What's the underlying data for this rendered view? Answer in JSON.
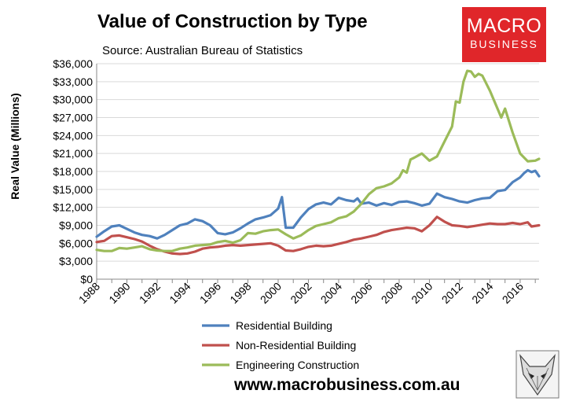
{
  "header": {
    "title": "Value of Construction by Type",
    "subtitle": "Source: Australian Bureau of Statistics"
  },
  "logo": {
    "line1": "MACRO",
    "line2": "BUSINESS"
  },
  "footer": {
    "url": "www.macrobusiness.com.au"
  },
  "chart_data": {
    "type": "line",
    "ylabel": "Real Value (Millions)",
    "xlabel": "",
    "xlim": [
      1988,
      2017.25
    ],
    "ylim": [
      0,
      36000
    ],
    "yticks": [
      0,
      3000,
      6000,
      9000,
      12000,
      15000,
      18000,
      21000,
      24000,
      27000,
      30000,
      33000,
      36000
    ],
    "ytick_labels": [
      "$0",
      "$3,000",
      "$6,000",
      "$9,000",
      "$12,000",
      "$15,000",
      "$18,000",
      "$21,000",
      "$24,000",
      "$27,000",
      "$30,000",
      "$33,000",
      "$36,000"
    ],
    "xticks": [
      1988,
      1990,
      1992,
      1994,
      1996,
      1998,
      2000,
      2002,
      2004,
      2006,
      2008,
      2010,
      2012,
      2014,
      2016
    ],
    "grid": true,
    "legend_position": "bottom",
    "series": [
      {
        "name": "Residential Building",
        "color": "#4f81bd",
        "points": [
          [
            1988,
            7100
          ],
          [
            1988.5,
            8000
          ],
          [
            1989,
            8800
          ],
          [
            1989.5,
            9000
          ],
          [
            1990,
            8400
          ],
          [
            1990.5,
            7800
          ],
          [
            1991,
            7400
          ],
          [
            1991.5,
            7200
          ],
          [
            1992,
            6800
          ],
          [
            1992.5,
            7400
          ],
          [
            1993,
            8200
          ],
          [
            1993.5,
            9000
          ],
          [
            1994,
            9300
          ],
          [
            1994.5,
            10000
          ],
          [
            1995,
            9700
          ],
          [
            1995.5,
            9000
          ],
          [
            1996,
            7700
          ],
          [
            1996.5,
            7500
          ],
          [
            1997,
            7800
          ],
          [
            1997.5,
            8500
          ],
          [
            1998,
            9300
          ],
          [
            1998.5,
            10000
          ],
          [
            1999,
            10300
          ],
          [
            1999.5,
            10700
          ],
          [
            2000,
            11800
          ],
          [
            2000.25,
            13700
          ],
          [
            2000.5,
            8600
          ],
          [
            2001,
            8600
          ],
          [
            2001.5,
            10300
          ],
          [
            2002,
            11700
          ],
          [
            2002.5,
            12500
          ],
          [
            2003,
            12800
          ],
          [
            2003.5,
            12500
          ],
          [
            2004,
            13600
          ],
          [
            2004.5,
            13200
          ],
          [
            2005,
            13000
          ],
          [
            2005.25,
            13500
          ],
          [
            2005.5,
            12600
          ],
          [
            2006,
            12800
          ],
          [
            2006.5,
            12300
          ],
          [
            2007,
            12700
          ],
          [
            2007.5,
            12400
          ],
          [
            2008,
            12900
          ],
          [
            2008.5,
            13000
          ],
          [
            2009,
            12700
          ],
          [
            2009.5,
            12300
          ],
          [
            2010,
            12600
          ],
          [
            2010.5,
            14300
          ],
          [
            2011,
            13700
          ],
          [
            2011.5,
            13400
          ],
          [
            2012,
            13000
          ],
          [
            2012.5,
            12800
          ],
          [
            2013,
            13200
          ],
          [
            2013.5,
            13500
          ],
          [
            2014,
            13600
          ],
          [
            2014.5,
            14700
          ],
          [
            2015,
            14900
          ],
          [
            2015.5,
            16200
          ],
          [
            2016,
            17000
          ],
          [
            2016.25,
            17700
          ],
          [
            2016.5,
            18200
          ],
          [
            2016.75,
            17900
          ],
          [
            2017,
            18100
          ],
          [
            2017.25,
            17200
          ]
        ]
      },
      {
        "name": "Non-Residential Building",
        "color": "#c0504d",
        "points": [
          [
            1988,
            6200
          ],
          [
            1988.5,
            6400
          ],
          [
            1989,
            7200
          ],
          [
            1989.5,
            7300
          ],
          [
            1990,
            7000
          ],
          [
            1990.5,
            6700
          ],
          [
            1991,
            6300
          ],
          [
            1991.5,
            5600
          ],
          [
            1992,
            5000
          ],
          [
            1992.5,
            4600
          ],
          [
            1993,
            4300
          ],
          [
            1993.5,
            4200
          ],
          [
            1994,
            4300
          ],
          [
            1994.5,
            4600
          ],
          [
            1995,
            5100
          ],
          [
            1995.5,
            5300
          ],
          [
            1996,
            5400
          ],
          [
            1996.5,
            5600
          ],
          [
            1997,
            5700
          ],
          [
            1997.5,
            5600
          ],
          [
            1998,
            5700
          ],
          [
            1998.5,
            5800
          ],
          [
            1999,
            5900
          ],
          [
            1999.5,
            6000
          ],
          [
            2000,
            5600
          ],
          [
            2000.5,
            4800
          ],
          [
            2001,
            4700
          ],
          [
            2001.5,
            5000
          ],
          [
            2002,
            5400
          ],
          [
            2002.5,
            5600
          ],
          [
            2003,
            5500
          ],
          [
            2003.5,
            5600
          ],
          [
            2004,
            5900
          ],
          [
            2004.5,
            6200
          ],
          [
            2005,
            6600
          ],
          [
            2005.5,
            6800
          ],
          [
            2006,
            7100
          ],
          [
            2006.5,
            7400
          ],
          [
            2007,
            7900
          ],
          [
            2007.5,
            8200
          ],
          [
            2008,
            8400
          ],
          [
            2008.5,
            8600
          ],
          [
            2009,
            8500
          ],
          [
            2009.5,
            8000
          ],
          [
            2010,
            9000
          ],
          [
            2010.5,
            10400
          ],
          [
            2011,
            9600
          ],
          [
            2011.5,
            9000
          ],
          [
            2012,
            8900
          ],
          [
            2012.5,
            8700
          ],
          [
            2013,
            8900
          ],
          [
            2013.5,
            9100
          ],
          [
            2014,
            9300
          ],
          [
            2014.5,
            9200
          ],
          [
            2015,
            9200
          ],
          [
            2015.5,
            9400
          ],
          [
            2016,
            9200
          ],
          [
            2016.5,
            9500
          ],
          [
            2016.75,
            8800
          ],
          [
            2017.25,
            9000
          ]
        ]
      },
      {
        "name": "Engineering Construction",
        "color": "#9bbb59",
        "points": [
          [
            1988,
            4900
          ],
          [
            1988.5,
            4700
          ],
          [
            1989,
            4700
          ],
          [
            1989.5,
            5200
          ],
          [
            1990,
            5100
          ],
          [
            1990.5,
            5300
          ],
          [
            1991,
            5500
          ],
          [
            1991.5,
            5000
          ],
          [
            1992,
            4800
          ],
          [
            1992.5,
            4700
          ],
          [
            1993,
            4700
          ],
          [
            1993.5,
            5100
          ],
          [
            1994,
            5300
          ],
          [
            1994.5,
            5600
          ],
          [
            1995,
            5700
          ],
          [
            1995.5,
            5800
          ],
          [
            1996,
            6200
          ],
          [
            1996.5,
            6400
          ],
          [
            1997,
            6100
          ],
          [
            1997.5,
            6500
          ],
          [
            1998,
            7700
          ],
          [
            1998.5,
            7600
          ],
          [
            1999,
            8000
          ],
          [
            1999.5,
            8200
          ],
          [
            2000,
            8300
          ],
          [
            2000.5,
            7500
          ],
          [
            2001,
            6800
          ],
          [
            2001.5,
            7300
          ],
          [
            2002,
            8200
          ],
          [
            2002.5,
            8900
          ],
          [
            2003,
            9200
          ],
          [
            2003.5,
            9500
          ],
          [
            2004,
            10200
          ],
          [
            2004.5,
            10500
          ],
          [
            2005,
            11300
          ],
          [
            2005.5,
            12600
          ],
          [
            2006,
            14200
          ],
          [
            2006.5,
            15200
          ],
          [
            2007,
            15500
          ],
          [
            2007.5,
            16000
          ],
          [
            2008,
            17000
          ],
          [
            2008.25,
            18200
          ],
          [
            2008.5,
            17800
          ],
          [
            2008.75,
            20000
          ],
          [
            2009,
            20300
          ],
          [
            2009.5,
            21000
          ],
          [
            2010,
            19800
          ],
          [
            2010.5,
            20500
          ],
          [
            2011,
            23000
          ],
          [
            2011.5,
            25500
          ],
          [
            2011.75,
            29700
          ],
          [
            2012,
            29500
          ],
          [
            2012.25,
            33000
          ],
          [
            2012.5,
            34800
          ],
          [
            2012.75,
            34700
          ],
          [
            2013,
            33800
          ],
          [
            2013.25,
            34300
          ],
          [
            2013.5,
            34000
          ],
          [
            2014,
            31500
          ],
          [
            2014.5,
            28500
          ],
          [
            2014.75,
            27000
          ],
          [
            2015,
            28500
          ],
          [
            2015.5,
            24500
          ],
          [
            2016,
            21000
          ],
          [
            2016.5,
            19700
          ],
          [
            2017,
            19800
          ],
          [
            2017.25,
            20100
          ]
        ]
      }
    ]
  }
}
